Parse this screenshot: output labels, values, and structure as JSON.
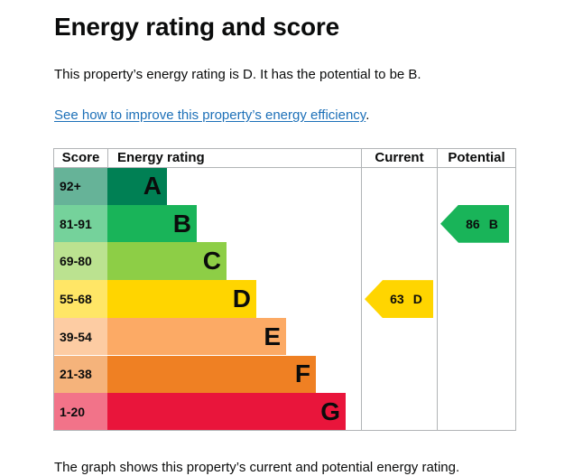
{
  "page": {
    "title": "Energy rating and score",
    "summary": "This property’s energy rating is D. It has the potential to be B.",
    "improve_link": "See how to improve this property’s energy efficiency",
    "improve_link_suffix": ".",
    "footnote": "The graph shows this property’s current and potential energy rating."
  },
  "table": {
    "headers": {
      "score": "Score",
      "energy_rating": "Energy rating",
      "current": "Current",
      "potential": "Potential"
    },
    "bands": [
      {
        "score": "92+",
        "letter": "A",
        "color": "#008054",
        "score_bg": "#66b398"
      },
      {
        "score": "81-91",
        "letter": "B",
        "color": "#19b459",
        "score_bg": "#75d29b"
      },
      {
        "score": "69-80",
        "letter": "C",
        "color": "#8dce46",
        "score_bg": "#bbe290"
      },
      {
        "score": "55-68",
        "letter": "D",
        "color": "#ffd500",
        "score_bg": "#ffe666"
      },
      {
        "score": "39-54",
        "letter": "E",
        "color": "#fcaa65",
        "score_bg": "#fdcca3"
      },
      {
        "score": "21-38",
        "letter": "F",
        "color": "#ef8023",
        "score_bg": "#f5b37b"
      },
      {
        "score": "1-20",
        "letter": "G",
        "color": "#e9153b",
        "score_bg": "#f27389"
      }
    ],
    "current": {
      "score": "63",
      "letter": "D",
      "band": "D",
      "color": "#ffd500"
    },
    "potential": {
      "score": "86",
      "letter": "B",
      "band": "B",
      "color": "#19b459"
    }
  }
}
